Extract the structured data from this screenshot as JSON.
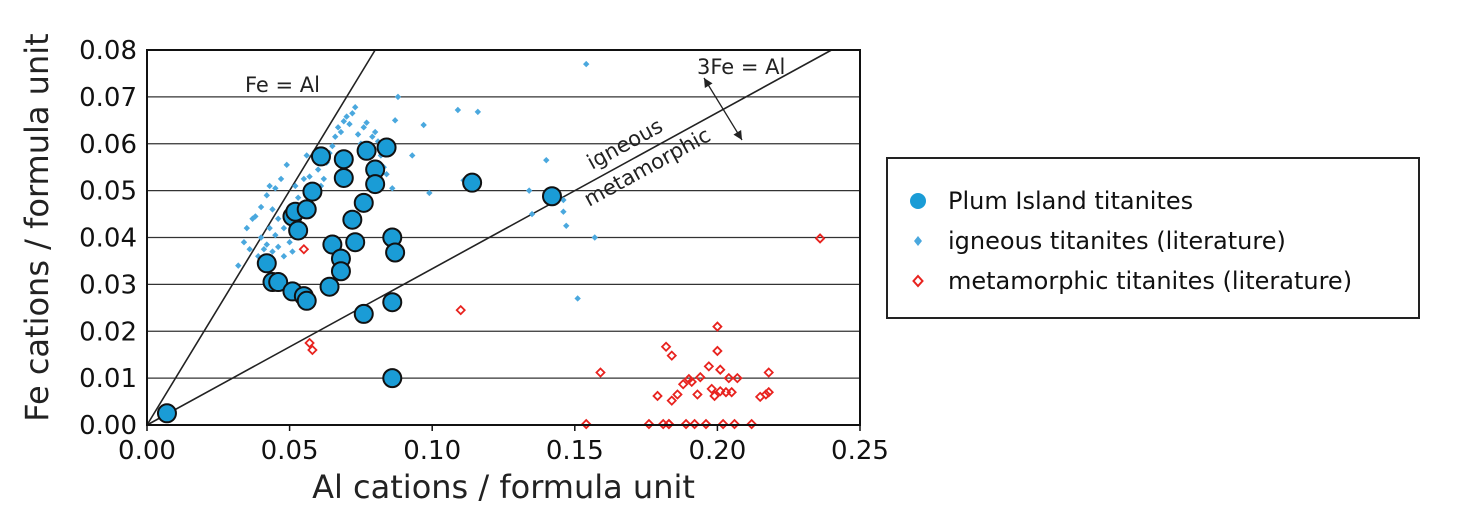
{
  "chart_data": {
    "type": "scatter",
    "xlabel": "Al cations / formula unit",
    "ylabel": "Fe cations / formula unit",
    "xlim": [
      0,
      0.25
    ],
    "ylim": [
      0,
      0.08
    ],
    "x_ticks": [
      "0.00",
      "0.05",
      "0.10",
      "0.15",
      "0.20",
      "0.25"
    ],
    "y_ticks": [
      "0.00",
      "0.01",
      "0.02",
      "0.03",
      "0.04",
      "0.05",
      "0.06",
      "0.07",
      "0.08"
    ],
    "grid": "horizontal",
    "legend_position": "right",
    "reference_lines": [
      {
        "label": "Fe = Al",
        "slope": 1
      },
      {
        "label": "3Fe = Al",
        "slope": 0.3333
      }
    ],
    "annotations": [
      "igneous",
      "metamorphic"
    ],
    "series": [
      {
        "name": "Plum Island titanites",
        "color": "#1a9cd6",
        "marker": "circle",
        "points": [
          [
            0.007,
            0.0025
          ],
          [
            0.042,
            0.0345
          ],
          [
            0.044,
            0.0305
          ],
          [
            0.046,
            0.0305
          ],
          [
            0.051,
            0.0285
          ],
          [
            0.051,
            0.0445
          ],
          [
            0.052,
            0.0455
          ],
          [
            0.053,
            0.0415
          ],
          [
            0.055,
            0.0275
          ],
          [
            0.056,
            0.0265
          ],
          [
            0.056,
            0.046
          ],
          [
            0.058,
            0.0498
          ],
          [
            0.061,
            0.0573
          ],
          [
            0.064,
            0.0295
          ],
          [
            0.065,
            0.0385
          ],
          [
            0.068,
            0.0355
          ],
          [
            0.068,
            0.0328
          ],
          [
            0.069,
            0.0567
          ],
          [
            0.069,
            0.0527
          ],
          [
            0.072,
            0.0438
          ],
          [
            0.073,
            0.039
          ],
          [
            0.076,
            0.0474
          ],
          [
            0.076,
            0.0237
          ],
          [
            0.077,
            0.0585
          ],
          [
            0.08,
            0.0545
          ],
          [
            0.08,
            0.0514
          ],
          [
            0.084,
            0.0592
          ],
          [
            0.086,
            0.04
          ],
          [
            0.086,
            0.0262
          ],
          [
            0.087,
            0.0368
          ],
          [
            0.086,
            0.01
          ],
          [
            0.114,
            0.0517
          ],
          [
            0.142,
            0.0488
          ]
        ]
      },
      {
        "name": "igneous titanites (literature)",
        "color": "#4aa8de",
        "marker": "diamond-small",
        "points": [
          [
            0.032,
            0.034
          ],
          [
            0.034,
            0.039
          ],
          [
            0.035,
            0.042
          ],
          [
            0.036,
            0.0375
          ],
          [
            0.037,
            0.044
          ],
          [
            0.038,
            0.0445
          ],
          [
            0.039,
            0.036
          ],
          [
            0.04,
            0.04
          ],
          [
            0.04,
            0.0465
          ],
          [
            0.041,
            0.0375
          ],
          [
            0.042,
            0.0385
          ],
          [
            0.042,
            0.049
          ],
          [
            0.043,
            0.042
          ],
          [
            0.043,
            0.051
          ],
          [
            0.044,
            0.037
          ],
          [
            0.044,
            0.046
          ],
          [
            0.045,
            0.0405
          ],
          [
            0.045,
            0.0505
          ],
          [
            0.046,
            0.038
          ],
          [
            0.046,
            0.044
          ],
          [
            0.047,
            0.0525
          ],
          [
            0.048,
            0.036
          ],
          [
            0.048,
            0.042
          ],
          [
            0.049,
            0.0555
          ],
          [
            0.05,
            0.039
          ],
          [
            0.051,
            0.037
          ],
          [
            0.052,
            0.051
          ],
          [
            0.053,
            0.0485
          ],
          [
            0.054,
            0.047
          ],
          [
            0.055,
            0.0525
          ],
          [
            0.056,
            0.0575
          ],
          [
            0.057,
            0.053
          ],
          [
            0.059,
            0.0495
          ],
          [
            0.06,
            0.0545
          ],
          [
            0.061,
            0.051
          ],
          [
            0.062,
            0.0525
          ],
          [
            0.063,
            0.056
          ],
          [
            0.064,
            0.058
          ],
          [
            0.065,
            0.0595
          ],
          [
            0.066,
            0.0615
          ],
          [
            0.067,
            0.0635
          ],
          [
            0.068,
            0.0625
          ],
          [
            0.069,
            0.0648
          ],
          [
            0.07,
            0.0658
          ],
          [
            0.071,
            0.0642
          ],
          [
            0.072,
            0.0665
          ],
          [
            0.073,
            0.0678
          ],
          [
            0.074,
            0.062
          ],
          [
            0.075,
            0.06
          ],
          [
            0.076,
            0.0635
          ],
          [
            0.077,
            0.0645
          ],
          [
            0.078,
            0.0555
          ],
          [
            0.079,
            0.0615
          ],
          [
            0.08,
            0.0625
          ],
          [
            0.081,
            0.0605
          ],
          [
            0.082,
            0.0575
          ],
          [
            0.083,
            0.055
          ],
          [
            0.084,
            0.0535
          ],
          [
            0.086,
            0.0505
          ],
          [
            0.087,
            0.065
          ],
          [
            0.088,
            0.07
          ],
          [
            0.093,
            0.0575
          ],
          [
            0.097,
            0.064
          ],
          [
            0.099,
            0.0495
          ],
          [
            0.109,
            0.0672
          ],
          [
            0.111,
            0.0522
          ],
          [
            0.116,
            0.0668
          ],
          [
            0.134,
            0.05
          ],
          [
            0.135,
            0.045
          ],
          [
            0.14,
            0.0565
          ],
          [
            0.146,
            0.0455
          ],
          [
            0.147,
            0.0425
          ],
          [
            0.151,
            0.027
          ],
          [
            0.154,
            0.077
          ],
          [
            0.157,
            0.04
          ],
          [
            0.146,
            0.048
          ]
        ]
      },
      {
        "name": "metamorphic titanites (literature)",
        "color": "#e8231f",
        "marker": "diamond-open",
        "points": [
          [
            0.055,
            0.0375
          ],
          [
            0.057,
            0.0175
          ],
          [
            0.058,
            0.016
          ],
          [
            0.11,
            0.0245
          ],
          [
            0.154,
            0.0002
          ],
          [
            0.159,
            0.0112
          ],
          [
            0.176,
            0.0002
          ],
          [
            0.179,
            0.0062
          ],
          [
            0.181,
            0.0002
          ],
          [
            0.183,
            0.0002
          ],
          [
            0.182,
            0.0167
          ],
          [
            0.183,
            0.0002
          ],
          [
            0.184,
            0.0148
          ],
          [
            0.184,
            0.0052
          ],
          [
            0.186,
            0.0065
          ],
          [
            0.188,
            0.0087
          ],
          [
            0.189,
            0.0002
          ],
          [
            0.19,
            0.0098
          ],
          [
            0.191,
            0.0092
          ],
          [
            0.192,
            0.0002
          ],
          [
            0.193,
            0.0065
          ],
          [
            0.194,
            0.0102
          ],
          [
            0.196,
            0.0002
          ],
          [
            0.197,
            0.0125
          ],
          [
            0.198,
            0.0077
          ],
          [
            0.199,
            0.0062
          ],
          [
            0.2,
            0.021
          ],
          [
            0.2,
            0.0158
          ],
          [
            0.201,
            0.0072
          ],
          [
            0.201,
            0.0118
          ],
          [
            0.202,
            0.0002
          ],
          [
            0.203,
            0.007
          ],
          [
            0.204,
            0.01
          ],
          [
            0.205,
            0.007
          ],
          [
            0.206,
            0.0002
          ],
          [
            0.207,
            0.01
          ],
          [
            0.212,
            0.0002
          ],
          [
            0.215,
            0.006
          ],
          [
            0.217,
            0.0065
          ],
          [
            0.218,
            0.0112
          ],
          [
            0.218,
            0.007
          ],
          [
            0.236,
            0.0398
          ]
        ]
      }
    ]
  },
  "legend": {
    "items": [
      {
        "label": "Plum Island titanites"
      },
      {
        "label": "igneous titanites (literature)"
      },
      {
        "label": "metamorphic titanites (literature)"
      }
    ]
  }
}
